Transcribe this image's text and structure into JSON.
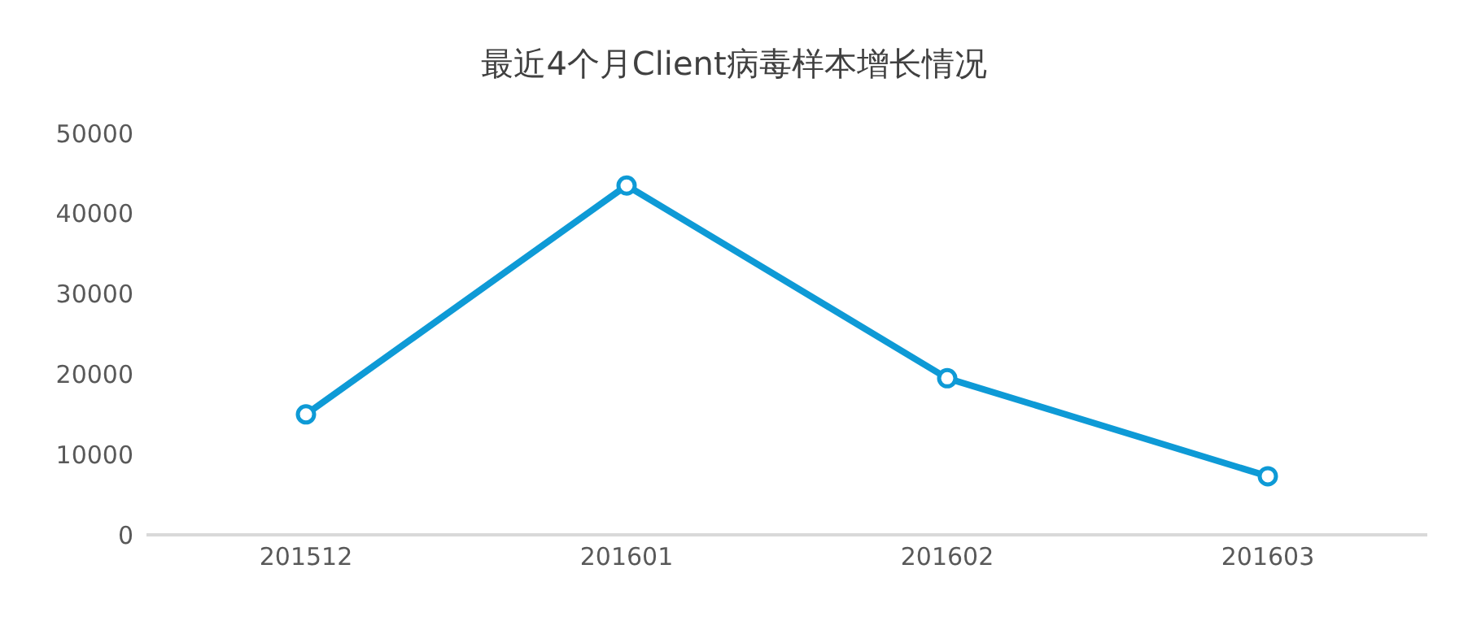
{
  "chart_data": {
    "type": "line",
    "title": "最近4个月Client病毒样本增长情况",
    "categories": [
      "201512",
      "201601",
      "201602",
      "201603"
    ],
    "series": [
      {
        "color": "#0e9ad6",
        "values": [
          15000,
          43500,
          19500,
          7300
        ]
      }
    ],
    "ylim": [
      0,
      50000
    ],
    "yticks": [
      0,
      10000,
      20000,
      30000,
      40000,
      50000
    ],
    "grid": false,
    "marker": "circle",
    "line_style": "solid"
  }
}
